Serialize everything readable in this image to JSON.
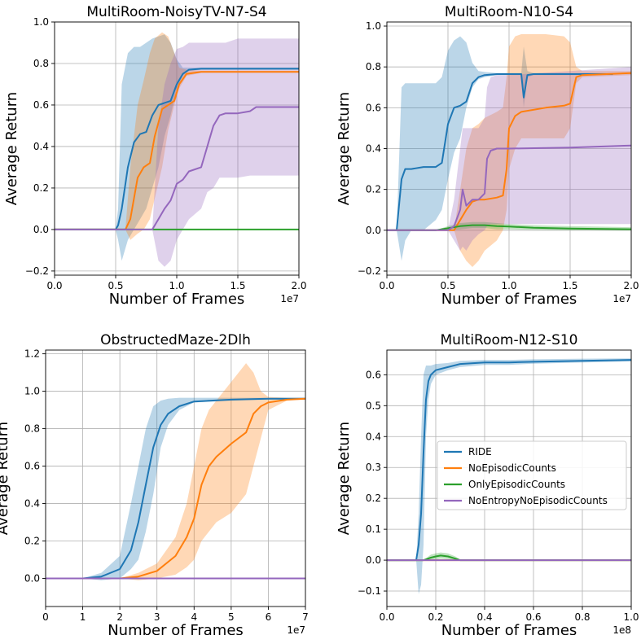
{
  "legend": {
    "entries": [
      {
        "label": "RIDE",
        "color": "#1f77b4"
      },
      {
        "label": "NoEpisodicCounts",
        "color": "#ff7f0e"
      },
      {
        "label": "OnlyEpisodicCounts",
        "color": "#2ca02c"
      },
      {
        "label": "NoEntropyNoEpisodicCounts",
        "color": "#9467bd"
      }
    ]
  },
  "chart_data": [
    {
      "type": "line",
      "title": "MultiRoom-NoisyTV-N7-S4",
      "xlabel": "Number of Frames",
      "ylabel": "Average Return",
      "x_multiplier": "1e7",
      "xlim": [
        0,
        2.0
      ],
      "ylim": [
        -0.22,
        1.0
      ],
      "xticks": [
        0.0,
        0.5,
        1.0,
        1.5,
        2.0
      ],
      "xtick_labels": [
        "0.0",
        "0.5",
        "1.0",
        "1.5",
        "2.0"
      ],
      "yticks": [
        -0.2,
        0.0,
        0.2,
        0.4,
        0.6,
        0.8,
        1.0
      ],
      "ytick_labels": [
        "−0.2",
        "0.0",
        "0.2",
        "0.4",
        "0.6",
        "0.8",
        "1.0"
      ],
      "grid": true,
      "series": [
        {
          "name": "RIDE",
          "color": "#1f77b4",
          "x": [
            0,
            0.5,
            0.52,
            0.55,
            0.6,
            0.65,
            0.7,
            0.75,
            0.8,
            0.85,
            0.9,
            0.95,
            1.0,
            1.05,
            1.1,
            1.2,
            1.5,
            2.0
          ],
          "y": [
            0,
            0,
            0.02,
            0.1,
            0.3,
            0.42,
            0.46,
            0.47,
            0.55,
            0.6,
            0.61,
            0.62,
            0.7,
            0.75,
            0.77,
            0.775,
            0.775,
            0.775
          ],
          "lower": [
            0,
            0,
            -0.05,
            -0.15,
            -0.05,
            0.0,
            0.05,
            0.1,
            0.2,
            0.3,
            0.45,
            0.55,
            0.68,
            0.74,
            0.765,
            0.77,
            0.77,
            0.77
          ],
          "upper": [
            0,
            0,
            0.1,
            0.7,
            0.85,
            0.88,
            0.88,
            0.9,
            0.92,
            0.93,
            0.94,
            0.9,
            0.82,
            0.78,
            0.78,
            0.78,
            0.78,
            0.78
          ]
        },
        {
          "name": "NoEpisodicCounts",
          "color": "#ff7f0e",
          "x": [
            0,
            0.58,
            0.62,
            0.68,
            0.73,
            0.78,
            0.82,
            0.88,
            0.93,
            0.98,
            1.02,
            1.08,
            1.2,
            1.5,
            2.0
          ],
          "y": [
            0,
            0,
            0.05,
            0.25,
            0.3,
            0.32,
            0.45,
            0.58,
            0.6,
            0.62,
            0.7,
            0.75,
            0.76,
            0.76,
            0.76
          ],
          "lower": [
            0,
            0,
            -0.05,
            -0.02,
            0.0,
            0.05,
            0.15,
            0.3,
            0.48,
            0.6,
            0.68,
            0.74,
            0.755,
            0.755,
            0.755
          ],
          "upper": [
            0,
            0,
            0.3,
            0.6,
            0.72,
            0.85,
            0.92,
            0.95,
            0.93,
            0.85,
            0.78,
            0.77,
            0.765,
            0.765,
            0.765
          ]
        },
        {
          "name": "OnlyEpisodicCounts",
          "color": "#2ca02c",
          "x": [
            0,
            2.0
          ],
          "y": [
            0,
            0
          ],
          "lower": [
            0,
            0
          ],
          "upper": [
            0,
            0
          ]
        },
        {
          "name": "NoEntropyNoEpisodicCounts",
          "color": "#9467bd",
          "x": [
            0,
            0.8,
            0.85,
            0.9,
            0.95,
            1.0,
            1.05,
            1.1,
            1.2,
            1.25,
            1.3,
            1.35,
            1.4,
            1.5,
            1.6,
            1.65,
            1.7,
            2.0
          ],
          "y": [
            0,
            0,
            0.05,
            0.1,
            0.14,
            0.22,
            0.24,
            0.28,
            0.3,
            0.4,
            0.5,
            0.55,
            0.56,
            0.56,
            0.57,
            0.59,
            0.59,
            0.59
          ],
          "lower": [
            0,
            0,
            -0.15,
            -0.18,
            -0.15,
            -0.05,
            0.0,
            0.05,
            0.1,
            0.18,
            0.2,
            0.25,
            0.25,
            0.25,
            0.26,
            0.26,
            0.26,
            0.26
          ],
          "upper": [
            0,
            0,
            0.5,
            0.7,
            0.8,
            0.87,
            0.88,
            0.9,
            0.9,
            0.9,
            0.9,
            0.9,
            0.9,
            0.92,
            0.92,
            0.92,
            0.92,
            0.92
          ]
        }
      ]
    },
    {
      "type": "line",
      "title": "MultiRoom-N10-S4",
      "xlabel": "Number of Frames",
      "ylabel": "Average Return",
      "x_multiplier": "1e7",
      "xlim": [
        0,
        2.0
      ],
      "ylim": [
        -0.22,
        1.02
      ],
      "xticks": [
        0.0,
        0.5,
        1.0,
        1.5,
        2.0
      ],
      "xtick_labels": [
        "0.0",
        "0.5",
        "1.0",
        "1.5",
        "2.0"
      ],
      "yticks": [
        -0.2,
        0.0,
        0.2,
        0.4,
        0.6,
        0.8,
        1.0
      ],
      "ytick_labels": [
        "−0.2",
        "0.0",
        "0.2",
        "0.4",
        "0.6",
        "0.8",
        "1.0"
      ],
      "grid": true,
      "series": [
        {
          "name": "RIDE",
          "color": "#1f77b4",
          "x": [
            0,
            0.08,
            0.12,
            0.15,
            0.2,
            0.3,
            0.4,
            0.45,
            0.5,
            0.55,
            0.6,
            0.65,
            0.7,
            0.75,
            0.8,
            0.9,
            1.0,
            1.1,
            1.12,
            1.15,
            1.2,
            1.5,
            1.85
          ],
          "y": [
            0,
            0,
            0.25,
            0.3,
            0.3,
            0.31,
            0.31,
            0.33,
            0.52,
            0.6,
            0.61,
            0.63,
            0.72,
            0.75,
            0.76,
            0.765,
            0.765,
            0.765,
            0.65,
            0.76,
            0.765,
            0.765,
            0.765
          ],
          "lower": [
            0,
            0,
            -0.15,
            -0.05,
            0.0,
            0.0,
            0.05,
            0.1,
            0.25,
            0.38,
            0.45,
            0.6,
            0.7,
            0.74,
            0.75,
            0.76,
            0.76,
            0.76,
            0.6,
            0.75,
            0.76,
            0.76,
            0.76
          ],
          "upper": [
            0,
            0,
            0.7,
            0.72,
            0.72,
            0.72,
            0.72,
            0.75,
            0.88,
            0.93,
            0.95,
            0.92,
            0.82,
            0.78,
            0.775,
            0.77,
            0.77,
            0.77,
            0.9,
            0.78,
            0.77,
            0.77,
            0.77
          ]
        },
        {
          "name": "NoEpisodicCounts",
          "color": "#ff7f0e",
          "x": [
            0,
            0.55,
            0.6,
            0.65,
            0.7,
            0.75,
            0.8,
            0.9,
            0.95,
            0.98,
            1.0,
            1.05,
            1.1,
            1.3,
            1.45,
            1.5,
            1.55,
            1.6,
            2.0
          ],
          "y": [
            0,
            0,
            0.05,
            0.1,
            0.14,
            0.15,
            0.15,
            0.16,
            0.17,
            0.3,
            0.5,
            0.56,
            0.58,
            0.6,
            0.61,
            0.62,
            0.75,
            0.76,
            0.77
          ],
          "lower": [
            0,
            0,
            -0.1,
            -0.15,
            -0.18,
            -0.15,
            -0.1,
            -0.05,
            0.0,
            0.1,
            0.3,
            0.4,
            0.45,
            0.45,
            0.45,
            0.5,
            0.72,
            0.75,
            0.76
          ],
          "upper": [
            0,
            0,
            0.2,
            0.4,
            0.5,
            0.52,
            0.55,
            0.58,
            0.6,
            0.75,
            0.9,
            0.95,
            0.96,
            0.96,
            0.95,
            0.92,
            0.8,
            0.78,
            0.78
          ]
        },
        {
          "name": "OnlyEpisodicCounts",
          "color": "#2ca02c",
          "x": [
            0,
            0.4,
            0.5,
            0.6,
            0.7,
            0.8,
            0.9,
            1.0,
            1.2,
            1.5,
            2.0
          ],
          "y": [
            0,
            0,
            0.01,
            0.02,
            0.025,
            0.025,
            0.02,
            0.018,
            0.012,
            0.008,
            0.005
          ],
          "lower": [
            0,
            0,
            0.0,
            0.005,
            0.01,
            0.01,
            0.005,
            0.005,
            0.002,
            0.0,
            0.0
          ],
          "upper": [
            0,
            0,
            0.02,
            0.035,
            0.04,
            0.04,
            0.035,
            0.03,
            0.025,
            0.02,
            0.015
          ]
        },
        {
          "name": "NoEntropyNoEpisodicCounts",
          "color": "#9467bd",
          "x": [
            0,
            0.5,
            0.55,
            0.6,
            0.62,
            0.65,
            0.7,
            0.75,
            0.8,
            0.82,
            0.85,
            0.9,
            1.0,
            1.5,
            2.0
          ],
          "y": [
            0,
            0,
            0.02,
            0.1,
            0.2,
            0.12,
            0.15,
            0.15,
            0.18,
            0.35,
            0.39,
            0.4,
            0.4,
            0.405,
            0.415
          ],
          "lower": [
            0,
            0,
            -0.05,
            -0.1,
            -0.08,
            -0.1,
            -0.05,
            -0.02,
            0.0,
            0.02,
            0.03,
            0.03,
            0.03,
            0.03,
            0.03
          ],
          "upper": [
            0,
            0,
            0.15,
            0.4,
            0.5,
            0.5,
            0.5,
            0.5,
            0.55,
            0.7,
            0.75,
            0.76,
            0.76,
            0.78,
            0.8
          ]
        }
      ]
    },
    {
      "type": "line",
      "title": "ObstructedMaze-2Dlh",
      "xlabel": "Number of Frames",
      "ylabel": "Average Return",
      "x_multiplier": "1e7",
      "xlim": [
        0,
        7
      ],
      "ylim": [
        -0.15,
        1.22
      ],
      "xticks": [
        0,
        1,
        2,
        3,
        4,
        5,
        6,
        7
      ],
      "xtick_labels": [
        "0",
        "1",
        "2",
        "3",
        "4",
        "5",
        "6",
        "7"
      ],
      "yticks": [
        0.0,
        0.2,
        0.4,
        0.6,
        0.8,
        1.0,
        1.2
      ],
      "ytick_labels": [
        "0.0",
        "0.2",
        "0.4",
        "0.6",
        "0.8",
        "1.0",
        "1.2"
      ],
      "grid": true,
      "series": [
        {
          "name": "RIDE",
          "color": "#1f77b4",
          "x": [
            0,
            1.0,
            1.5,
            2.0,
            2.3,
            2.5,
            2.7,
            2.9,
            3.1,
            3.3,
            3.6,
            4.0,
            5.0,
            6.0,
            7.0
          ],
          "y": [
            0,
            0,
            0.01,
            0.05,
            0.15,
            0.3,
            0.5,
            0.7,
            0.82,
            0.88,
            0.92,
            0.945,
            0.955,
            0.96,
            0.96
          ],
          "lower": [
            0,
            0,
            -0.01,
            0.0,
            0.05,
            0.1,
            0.25,
            0.45,
            0.7,
            0.82,
            0.9,
            0.94,
            0.95,
            0.955,
            0.955
          ],
          "upper": [
            0,
            0,
            0.03,
            0.12,
            0.4,
            0.6,
            0.8,
            0.92,
            0.95,
            0.96,
            0.965,
            0.965,
            0.965,
            0.965,
            0.965
          ]
        },
        {
          "name": "NoEpisodicCounts",
          "color": "#ff7f0e",
          "x": [
            0,
            2.0,
            2.5,
            3.0,
            3.5,
            3.8,
            4.0,
            4.2,
            4.4,
            4.6,
            5.0,
            5.4,
            5.6,
            5.8,
            6.0,
            6.5,
            7.0
          ],
          "y": [
            0,
            0,
            0.01,
            0.04,
            0.12,
            0.22,
            0.32,
            0.5,
            0.6,
            0.65,
            0.72,
            0.78,
            0.88,
            0.92,
            0.94,
            0.955,
            0.96
          ],
          "lower": [
            0,
            0,
            -0.01,
            0.0,
            0.02,
            0.06,
            0.1,
            0.2,
            0.25,
            0.3,
            0.35,
            0.45,
            0.6,
            0.75,
            0.9,
            0.95,
            0.955
          ],
          "upper": [
            0,
            0,
            0.03,
            0.08,
            0.22,
            0.4,
            0.6,
            0.8,
            0.9,
            0.95,
            1.05,
            1.15,
            1.1,
            1.0,
            0.97,
            0.965,
            0.965
          ]
        },
        {
          "name": "OnlyEpisodicCounts",
          "color": "#2ca02c",
          "x": [
            0,
            7
          ],
          "y": [
            0,
            0
          ],
          "lower": [
            0,
            0
          ],
          "upper": [
            0,
            0
          ]
        },
        {
          "name": "NoEntropyNoEpisodicCounts",
          "color": "#9467bd",
          "x": [
            0,
            7
          ],
          "y": [
            0,
            0
          ],
          "lower": [
            0,
            0
          ],
          "upper": [
            0,
            0
          ]
        }
      ]
    },
    {
      "type": "line",
      "title": "MultiRoom-N12-S10",
      "xlabel": "Number of Frames",
      "ylabel": "Average Return",
      "x_multiplier": "1e8",
      "xlim": [
        0,
        1.0
      ],
      "ylim": [
        -0.15,
        0.68
      ],
      "xticks": [
        0.0,
        0.2,
        0.4,
        0.6,
        0.8,
        1.0
      ],
      "xtick_labels": [
        "0.0",
        "0.2",
        "0.4",
        "0.6",
        "0.8",
        "1.0"
      ],
      "yticks": [
        -0.1,
        0.0,
        0.1,
        0.2,
        0.3,
        0.4,
        0.5,
        0.6
      ],
      "ytick_labels": [
        "−0.1",
        "0.0",
        "0.1",
        "0.2",
        "0.3",
        "0.4",
        "0.5",
        "0.6"
      ],
      "grid": true,
      "legend_position": "center-right",
      "series": [
        {
          "name": "RIDE",
          "color": "#1f77b4",
          "x": [
            0,
            0.12,
            0.13,
            0.14,
            0.15,
            0.16,
            0.17,
            0.18,
            0.2,
            0.25,
            0.3,
            0.4,
            0.5,
            0.6,
            0.8,
            1.0
          ],
          "y": [
            0,
            0,
            0.05,
            0.15,
            0.35,
            0.52,
            0.58,
            0.6,
            0.615,
            0.625,
            0.635,
            0.64,
            0.64,
            0.642,
            0.645,
            0.648
          ],
          "lower": [
            0,
            0,
            -0.11,
            -0.08,
            0.05,
            0.4,
            0.52,
            0.57,
            0.6,
            0.615,
            0.625,
            0.632,
            0.632,
            0.636,
            0.64,
            0.643
          ],
          "upper": [
            0,
            0,
            0.15,
            0.4,
            0.6,
            0.63,
            0.63,
            0.63,
            0.635,
            0.638,
            0.645,
            0.648,
            0.648,
            0.65,
            0.652,
            0.653
          ]
        },
        {
          "name": "NoEpisodicCounts",
          "color": "#ff7f0e",
          "x": [
            0,
            1.0
          ],
          "y": [
            0,
            0
          ],
          "lower": [
            0,
            0
          ],
          "upper": [
            0,
            0
          ]
        },
        {
          "name": "OnlyEpisodicCounts",
          "color": "#2ca02c",
          "x": [
            0,
            0.15,
            0.18,
            0.2,
            0.22,
            0.25,
            0.28,
            0.3,
            1.0
          ],
          "y": [
            0,
            0,
            0.008,
            0.012,
            0.015,
            0.012,
            0.005,
            0.0,
            0.0
          ],
          "lower": [
            0,
            0,
            0.0,
            0.002,
            0.005,
            0.003,
            0.0,
            0.0,
            0.0
          ],
          "upper": [
            0,
            0,
            0.018,
            0.022,
            0.025,
            0.022,
            0.012,
            0.002,
            0.0
          ]
        },
        {
          "name": "NoEntropyNoEpisodicCounts",
          "color": "#9467bd",
          "x": [
            0,
            1.0
          ],
          "y": [
            0,
            0
          ],
          "lower": [
            0,
            0
          ],
          "upper": [
            0,
            0
          ]
        }
      ]
    }
  ]
}
